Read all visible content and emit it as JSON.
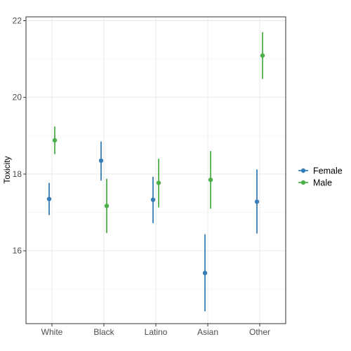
{
  "chart_data": {
    "type": "scatter",
    "subtype": "point-range",
    "title": "",
    "xlabel": "",
    "ylabel": "Toxicity",
    "categories": [
      "White",
      "Black",
      "Latino",
      "Asian",
      "Other"
    ],
    "ylim": [
      14.1,
      22.1
    ],
    "yticks": [
      16,
      18,
      20,
      22
    ],
    "grid": true,
    "legend_position": "right",
    "series": [
      {
        "name": "Female",
        "color": "#377EB8",
        "values": [
          17.35,
          18.35,
          17.33,
          15.42,
          17.28
        ],
        "lower": [
          16.93,
          17.83,
          16.72,
          14.42,
          16.45
        ],
        "upper": [
          17.77,
          18.85,
          17.93,
          16.43,
          18.12
        ]
      },
      {
        "name": "Male",
        "color": "#4DAF4A",
        "values": [
          18.88,
          17.17,
          17.77,
          17.85,
          21.09
        ],
        "lower": [
          18.52,
          16.46,
          17.13,
          17.1,
          20.48
        ],
        "upper": [
          19.24,
          17.88,
          18.4,
          18.6,
          21.7
        ]
      }
    ]
  }
}
